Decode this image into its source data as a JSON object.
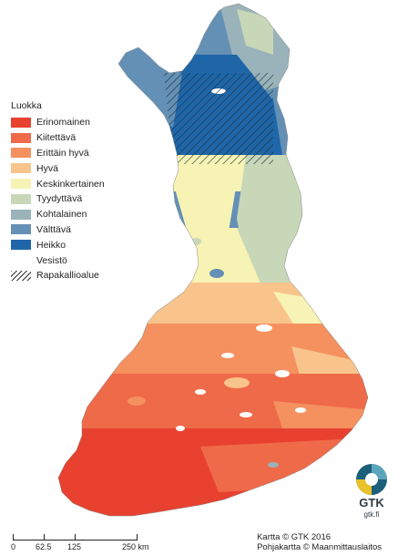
{
  "legend": {
    "title": "Luokka",
    "items": [
      {
        "label": "Erinomainen",
        "color": "#e8412f"
      },
      {
        "label": "Kiitettävä",
        "color": "#ef6a49"
      },
      {
        "label": "Erittäin hyvä",
        "color": "#f4915f"
      },
      {
        "label": "Hyvä",
        "color": "#f9c48c"
      },
      {
        "label": "Keskinkertainen",
        "color": "#f7f3b4"
      },
      {
        "label": "Tyydyttävä",
        "color": "#c7d7b8"
      },
      {
        "label": "Kohtalainen",
        "color": "#9ab2b9"
      },
      {
        "label": "Välttävä",
        "color": "#6490b5"
      },
      {
        "label": "Heikko",
        "color": "#1f66a8"
      },
      {
        "label": "Vesistö",
        "color": "none"
      },
      {
        "label": "Rapakallioalue",
        "color": "hatch"
      }
    ]
  },
  "scalebar": {
    "labels": [
      "0",
      "62.5",
      "125",
      "250 km"
    ]
  },
  "credits": {
    "line1": "Kartta © GTK 2016",
    "line2": "Pohjakartta © Maanmittauslaitos"
  },
  "logo": {
    "text": "GTK",
    "url": "gtk.fi"
  }
}
